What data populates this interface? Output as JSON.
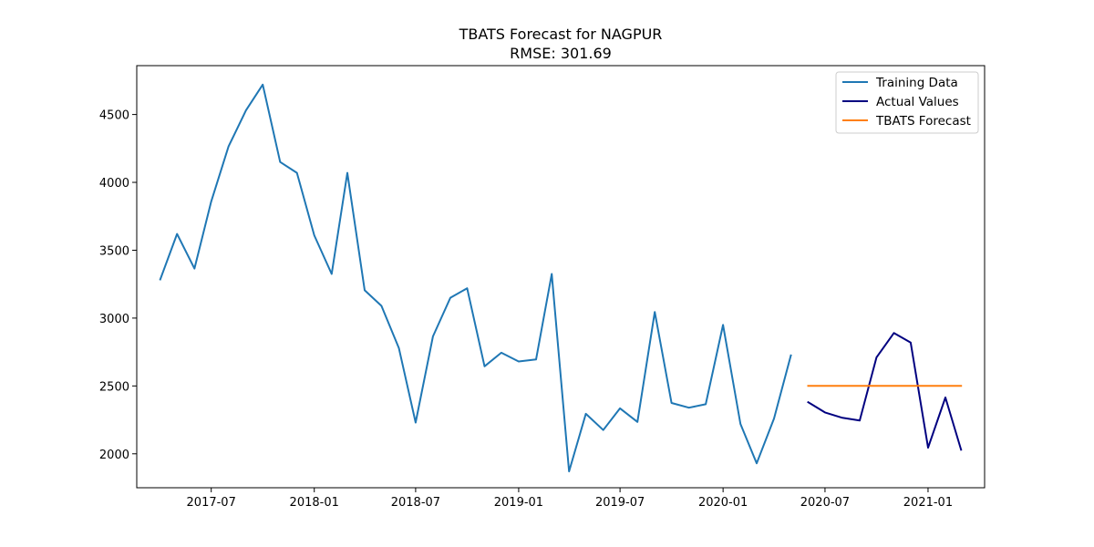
{
  "chart_data": {
    "type": "line",
    "title": "TBATS Forecast for NAGPUR",
    "subtitle": "RMSE: 301.69",
    "xlabel": "",
    "ylabel": "",
    "xlim": [
      "2017-02-18",
      "2021-04-12"
    ],
    "ylim": [
      1750,
      4860
    ],
    "x_ticks": [
      "2017-07",
      "2018-01",
      "2018-07",
      "2019-01",
      "2019-07",
      "2020-01",
      "2020-07",
      "2021-01"
    ],
    "y_ticks": [
      2000,
      2500,
      3000,
      3500,
      4000,
      4500
    ],
    "grid": false,
    "legend_position": "top-right",
    "series": [
      {
        "name": "Training Data",
        "color": "#1f77b4",
        "x": [
          "2017-04-01",
          "2017-05-01",
          "2017-06-01",
          "2017-07-01",
          "2017-08-01",
          "2017-09-01",
          "2017-10-01",
          "2017-11-01",
          "2017-12-01",
          "2018-01-01",
          "2018-02-01",
          "2018-03-01",
          "2018-04-01",
          "2018-05-01",
          "2018-06-01",
          "2018-07-01",
          "2018-08-01",
          "2018-09-01",
          "2018-10-01",
          "2018-11-01",
          "2018-12-01",
          "2019-01-01",
          "2019-02-01",
          "2019-03-01",
          "2019-04-01",
          "2019-05-01",
          "2019-06-01",
          "2019-07-01",
          "2019-08-01",
          "2019-09-01",
          "2019-10-01",
          "2019-11-01",
          "2019-12-01",
          "2020-01-01",
          "2020-02-01",
          "2020-03-01",
          "2020-04-01",
          "2020-05-01"
        ],
        "values": [
          3285,
          3620,
          3365,
          3860,
          4265,
          4530,
          4720,
          4150,
          4070,
          3610,
          3325,
          4070,
          3205,
          3090,
          2780,
          2230,
          2865,
          3150,
          3220,
          2645,
          2745,
          2680,
          2695,
          3325,
          1870,
          2295,
          2175,
          2335,
          2235,
          3045,
          2375,
          2340,
          2365,
          2950,
          2220,
          1930,
          2260,
          2725
        ]
      },
      {
        "name": "Actual Values",
        "color": "#000080",
        "x": [
          "2020-06-01",
          "2020-07-01",
          "2020-08-01",
          "2020-09-01",
          "2020-10-01",
          "2020-11-01",
          "2020-12-01",
          "2021-01-01",
          "2021-02-01",
          "2021-03-01"
        ],
        "values": [
          2380,
          2305,
          2265,
          2245,
          2710,
          2890,
          2820,
          2045,
          2415,
          2030
        ]
      },
      {
        "name": "TBATS Forecast",
        "color": "#ff7f0e",
        "x": [
          "2020-06-01",
          "2020-07-01",
          "2020-08-01",
          "2020-09-01",
          "2020-10-01",
          "2020-11-01",
          "2020-12-01",
          "2021-01-01",
          "2021-02-01",
          "2021-03-01"
        ],
        "values": [
          2500,
          2500,
          2500,
          2500,
          2500,
          2500,
          2500,
          2500,
          2500,
          2500
        ]
      }
    ]
  }
}
